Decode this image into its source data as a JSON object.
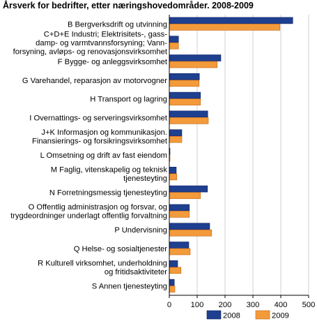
{
  "chart_data": {
    "type": "bar",
    "orientation": "horizontal",
    "title": "Årsverk for bedrifter, etter næringshovedområder. 2008-2009",
    "xlabel": "",
    "ylabel": "",
    "xlim": [
      0,
      500
    ],
    "xticks": [
      "0",
      "100",
      "200",
      "300",
      "400",
      "500"
    ],
    "grid": "vertical",
    "legend_position": "bottom-right",
    "categories": [
      [
        "B Bergverksdrift og utvinning"
      ],
      [
        "C+D+E Industri; Elektrisitets-, gass-",
        "damp- og varmtvannsforsyning; Vann-",
        "forsyning, avløps- og renovasjonsvirksomhet"
      ],
      [
        "F Bygge- og anleggsvirksomhet"
      ],
      [
        "G Varehandel, reparasjon av motorvogner"
      ],
      [
        "H Transport og lagring"
      ],
      [
        "I Overnattings- og serveringsvirksomhet"
      ],
      [
        "J+K Informasjon og kommunikasjon.",
        "Finansierings- og forsikringsvirksomhet"
      ],
      [
        "L Omsetning og drift av fast eiendom"
      ],
      [
        "M Faglig, vitenskapelig og teknisk",
        "tjenesteyting"
      ],
      [
        "N Forretningsmessig tjenesteyting"
      ],
      [
        "O Offentlig administrasjon og forsvar, og",
        "trygdeordninger underlagt offentlig forvaltning"
      ],
      [
        "P Undervisning"
      ],
      [
        "Q Helse- og sosialtjenester"
      ],
      [
        "R Kulturell virksomhet, underholdning",
        "og fritidsaktiviteter"
      ],
      [
        "S Annen tjenesteyting"
      ]
    ],
    "series": [
      {
        "name": "2008",
        "color": "#1f3f8f",
        "values": [
          443,
          33,
          185,
          108,
          112,
          138,
          45,
          2,
          25,
          137,
          72,
          145,
          70,
          30,
          18
        ]
      },
      {
        "name": "2009",
        "color": "#f39a3b",
        "values": [
          397,
          33,
          172,
          107,
          112,
          140,
          45,
          2,
          27,
          112,
          72,
          152,
          75,
          42,
          20
        ]
      }
    ]
  }
}
